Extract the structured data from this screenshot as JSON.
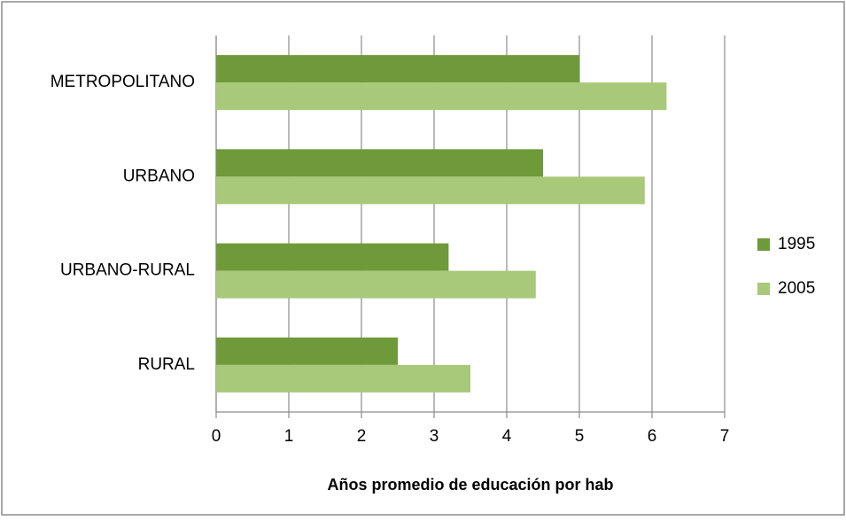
{
  "chart_data": {
    "type": "barh",
    "categories": [
      "METROPOLITANO",
      "URBANO",
      "URBANO-RURAL",
      "RURAL"
    ],
    "series": [
      {
        "name": "1995",
        "color": "#6e9a3a",
        "values": [
          5.0,
          4.5,
          3.2,
          2.5
        ]
      },
      {
        "name": "2005",
        "color": "#a8c87a",
        "values": [
          6.2,
          5.9,
          4.4,
          3.5
        ]
      }
    ],
    "xlabel": "Años promedio de educación por hab",
    "xlim": [
      0,
      7
    ],
    "xticks": [
      0,
      1,
      2,
      3,
      4,
      5,
      6,
      7
    ],
    "grid": true,
    "legend": "right"
  }
}
